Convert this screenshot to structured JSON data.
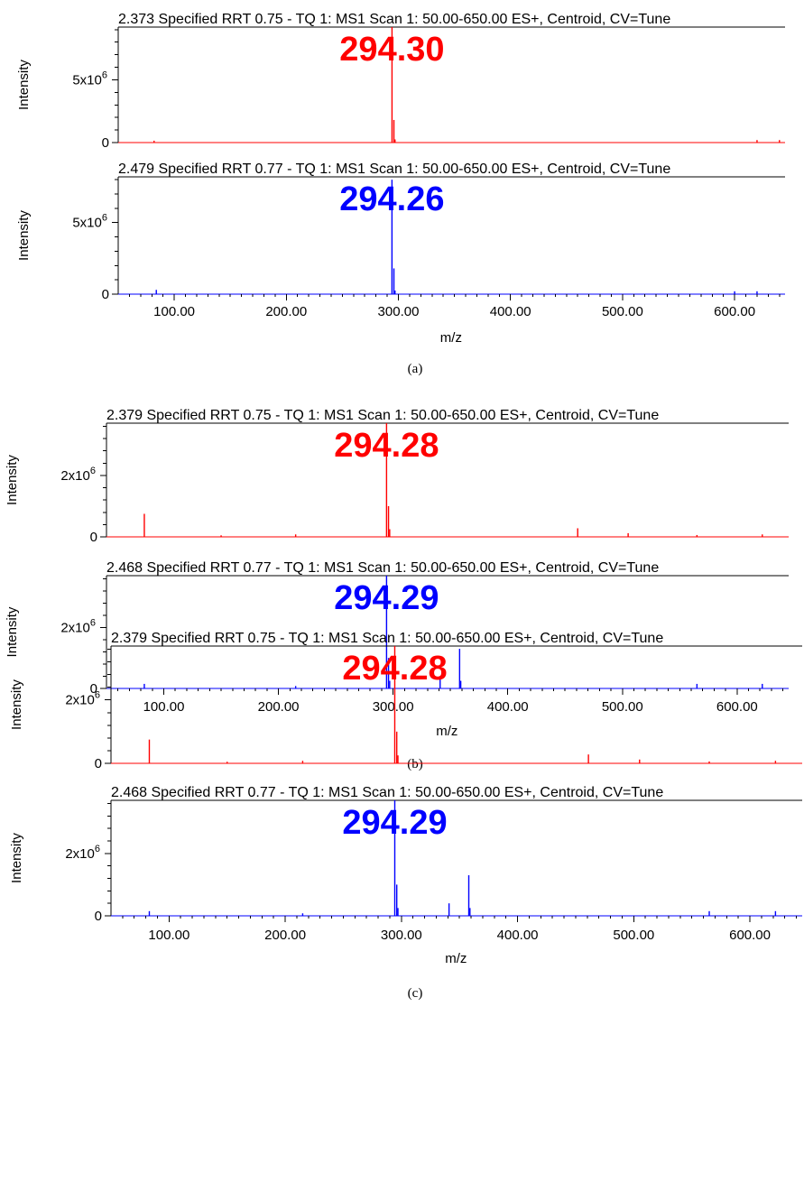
{
  "axis": {
    "ylabel": "Intensity",
    "xlabel": "m/z",
    "x_ticks": [
      "100.00",
      "200.00",
      "300.00",
      "400.00",
      "500.00",
      "600.00"
    ],
    "zero_label": "0"
  },
  "chart_data": [
    {
      "group": "(a)",
      "panels": [
        {
          "type": "bar",
          "title": "2.373 Specified RRT 0.75 - TQ 1: MS1 Scan 1: 50.00-650.00 ES+, Centroid, CV=Tune",
          "color": "#ff0000",
          "peak_label": "294.30",
          "ylabel": "Intensity",
          "ytick_base": "5x10",
          "ytick_exp": "6",
          "ytick_value": 5000000,
          "xlim": [
            50,
            645
          ],
          "ylim": [
            0,
            9200000
          ],
          "peaks": [
            [
              82,
              150000
            ],
            [
              294.3,
              9200000
            ],
            [
              296,
              1800000
            ],
            [
              297,
              250000
            ],
            [
              620,
              200000
            ],
            [
              640,
              200000
            ]
          ]
        },
        {
          "type": "bar",
          "title": "2.479 Specified RRT 0.77 - TQ 1: MS1 Scan 1: 50.00-650.00 ES+, Centroid, CV=Tune",
          "color": "#0000ff",
          "peak_label": "294.26",
          "ylabel": "Intensity",
          "ytick_base": "5x10",
          "ytick_exp": "6",
          "ytick_value": 5000000,
          "xlim": [
            50,
            645
          ],
          "ylim": [
            0,
            8200000
          ],
          "peaks": [
            [
              84,
              300000
            ],
            [
              294.26,
              8000000
            ],
            [
              296,
              1800000
            ],
            [
              297,
              250000
            ],
            [
              600,
              200000
            ],
            [
              620,
              200000
            ]
          ]
        }
      ]
    },
    {
      "group": "(b)",
      "panels": [
        {
          "type": "bar",
          "title": "2.379 Specified RRT 0.75 - TQ 1: MS1 Scan 1: 50.00-650.00 ES+, Centroid, CV=Tune",
          "color": "#ff0000",
          "peak_label": "294.28",
          "ylabel": "Intensity",
          "ytick_base": "2x10",
          "ytick_exp": "6",
          "ytick_value": 2000000,
          "xlim": [
            50,
            645
          ],
          "ylim": [
            0,
            3700000
          ],
          "peaks": [
            [
              83,
              750000
            ],
            [
              150,
              50000
            ],
            [
              215,
              80000
            ],
            [
              294.28,
              3700000
            ],
            [
              296,
              1000000
            ],
            [
              297,
              250000
            ],
            [
              461,
              280000
            ],
            [
              505,
              120000
            ],
            [
              565,
              60000
            ],
            [
              622,
              80000
            ]
          ]
        },
        {
          "type": "bar",
          "title": "2.468 Specified RRT 0.77 - TQ 1: MS1 Scan 1: 50.00-650.00 ES+, Centroid, CV=Tune",
          "color": "#0000ff",
          "peak_label": "294.29",
          "ylabel": "Intensity",
          "ytick_base": "2x10",
          "ytick_exp": "6",
          "ytick_value": 2000000,
          "xlim": [
            50,
            645
          ],
          "ylim": [
            0,
            3700000
          ],
          "peaks": [
            [
              83,
              150000
            ],
            [
              215,
              80000
            ],
            [
              294.29,
              3700000
            ],
            [
              296,
              1000000
            ],
            [
              297,
              250000
            ],
            [
              341,
              400000
            ],
            [
              358,
              1300000
            ],
            [
              359,
              250000
            ],
            [
              565,
              150000
            ],
            [
              622,
              150000
            ]
          ]
        }
      ]
    },
    {
      "group": "(c)",
      "panels": [
        {
          "type": "bar",
          "title": "2.379 Specified RRT 0.75 - TQ 1: MS1 Scan 1: 50.00-650.00 ES+, Centroid, CV=Tune",
          "color": "#ff0000",
          "peak_label": "294.28",
          "ylabel": "Intensity",
          "ytick_base": "2x10",
          "ytick_exp": "6",
          "ytick_value": 2000000,
          "xlim": [
            50,
            645
          ],
          "ylim": [
            0,
            3700000
          ],
          "peaks": [
            [
              83,
              750000
            ],
            [
              150,
              50000
            ],
            [
              215,
              80000
            ],
            [
              294.28,
              3700000
            ],
            [
              296,
              1000000
            ],
            [
              297,
              250000
            ],
            [
              461,
              280000
            ],
            [
              505,
              120000
            ],
            [
              565,
              60000
            ],
            [
              622,
              80000
            ]
          ]
        },
        {
          "type": "bar",
          "title": "2.468 Specified RRT 0.77 - TQ 1: MS1 Scan 1: 50.00-650.00 ES+, Centroid, CV=Tune",
          "color": "#0000ff",
          "peak_label": "294.29",
          "ylabel": "Intensity",
          "ytick_base": "2x10",
          "ytick_exp": "6",
          "ytick_value": 2000000,
          "xlim": [
            50,
            645
          ],
          "ylim": [
            0,
            3700000
          ],
          "peaks": [
            [
              83,
              150000
            ],
            [
              215,
              80000
            ],
            [
              294.29,
              3700000
            ],
            [
              296,
              1000000
            ],
            [
              297,
              250000
            ],
            [
              341,
              400000
            ],
            [
              358,
              1300000
            ],
            [
              359,
              250000
            ],
            [
              565,
              150000
            ],
            [
              622,
              150000
            ]
          ]
        }
      ]
    }
  ]
}
